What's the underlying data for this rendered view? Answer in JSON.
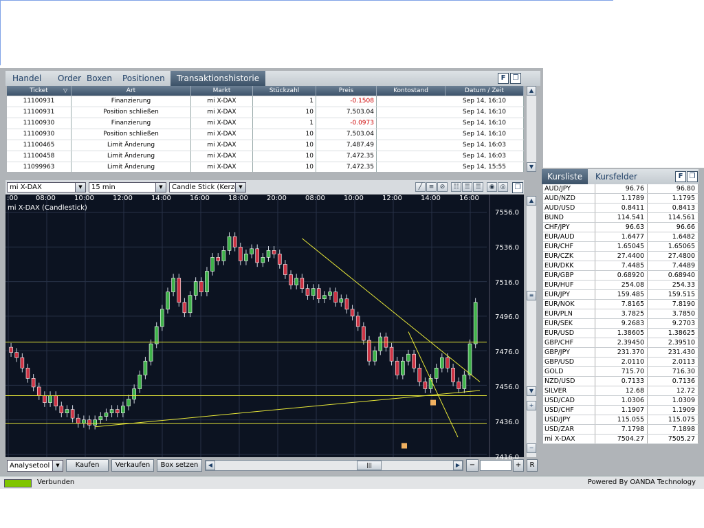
{
  "tabs": [
    "Handel",
    "Order",
    "Boxen",
    "Positionen",
    "Transaktionshistorie"
  ],
  "active_tab": "Transaktionshistorie",
  "table": {
    "headers": [
      "Ticket",
      "Art",
      "Markt",
      "Stückzahl",
      "Preis",
      "Kontostand",
      "Datum / Zeit"
    ],
    "rows": [
      [
        "11100931",
        "Finanzierung",
        "mi X-DAX",
        "1",
        "-0.1508",
        "",
        "Sep 14, 16:10"
      ],
      [
        "11100931",
        "Position schließen",
        "mi X-DAX",
        "10",
        "7,503.04",
        "",
        "Sep 14, 16:10"
      ],
      [
        "11100930",
        "Finanzierung",
        "mi X-DAX",
        "1",
        "-0.0973",
        "",
        "Sep 14, 16:10"
      ],
      [
        "11100930",
        "Position schließen",
        "mi X-DAX",
        "10",
        "7,503.04",
        "",
        "Sep 14, 16:10"
      ],
      [
        "11100465",
        "Limit Änderung",
        "mi X-DAX",
        "10",
        "7,487.49",
        "",
        "Sep 14, 16:03"
      ],
      [
        "11100458",
        "Limit Änderung",
        "mi X-DAX",
        "10",
        "7,472.35",
        "",
        "Sep 14, 16:03"
      ],
      [
        "11099963",
        "Limit Änderung",
        "mi X-DAX",
        "10",
        "7,472.35",
        "",
        "Sep 14, 15:55"
      ]
    ]
  },
  "chart_toolbar": {
    "instrument": "mi X-DAX",
    "interval": "15 min",
    "chart_type": "Candle Stick (Kerze"
  },
  "chart_data": {
    "type": "candlestick",
    "title": "mi X-DAX (Candlestick)",
    "x_ticks": [
      ":00",
      "08:00",
      "10:00",
      "12:00",
      "14:00",
      "16:00",
      "18:00",
      "20:00",
      "08:00",
      "10:00",
      "12:00",
      "14:00",
      "16:00"
    ],
    "y_ticks": [
      "7556.0",
      "7536.0",
      "7516.0",
      "7496.0",
      "7476.0",
      "7456.0",
      "7436.0",
      "7416.0"
    ],
    "ylim": [
      7416,
      7556
    ],
    "bull_color": "#3fb24a",
    "bear_color": "#cc3344",
    "line_color": "#e8e838",
    "marker_color": "#f0b060",
    "closes": [
      7475,
      7472,
      7466,
      7460,
      7455,
      7450,
      7446,
      7450,
      7444,
      7440,
      7442,
      7437,
      7434,
      7436,
      7433,
      7436,
      7438,
      7440,
      7442,
      7440,
      7444,
      7448,
      7454,
      7462,
      7470,
      7480,
      7490,
      7500,
      7510,
      7518,
      7504,
      7498,
      7508,
      7516,
      7510,
      7522,
      7530,
      7528,
      7534,
      7542,
      7536,
      7528,
      7532,
      7535,
      7527,
      7530,
      7534,
      7532,
      7526,
      7520,
      7514,
      7518,
      7512,
      7508,
      7512,
      7506,
      7508,
      7510,
      7504,
      7506,
      7500,
      7496,
      7490,
      7482,
      7470,
      7476,
      7484,
      7478,
      7470,
      7462,
      7470,
      7474,
      7466,
      7458,
      7454,
      7460,
      7466,
      7472,
      7466,
      7458,
      7454,
      7462,
      7480,
      7504
    ],
    "horizontal_levels": [
      7481,
      7450,
      7434
    ],
    "markers": [
      7446,
      7421
    ]
  },
  "bottom": {
    "analysetool": "Analysetool",
    "buy": "Kaufen",
    "sell": "Verkaufen",
    "box": "Box setzen",
    "r": "R"
  },
  "status": {
    "text": "Verbunden",
    "powered": "Powered By OANDA Technology",
    "indicator_color": "#7fc500"
  },
  "right_tabs": [
    "Kursliste",
    "Kursfelder"
  ],
  "quotes": [
    [
      "AUD/JPY",
      "96.76",
      "96.80"
    ],
    [
      "AUD/NZD",
      "1.1789",
      "1.1795"
    ],
    [
      "AUD/USD",
      "0.8411",
      "0.8413"
    ],
    [
      "BUND",
      "114.541",
      "114.561"
    ],
    [
      "CHF/JPY",
      "96.63",
      "96.66"
    ],
    [
      "EUR/AUD",
      "1.6477",
      "1.6482"
    ],
    [
      "EUR/CHF",
      "1.65045",
      "1.65065"
    ],
    [
      "EUR/CZK",
      "27.4400",
      "27.4800"
    ],
    [
      "EUR/DKK",
      "7.4485",
      "7.4489"
    ],
    [
      "EUR/GBP",
      "0.68920",
      "0.68940"
    ],
    [
      "EUR/HUF",
      "254.08",
      "254.33"
    ],
    [
      "EUR/JPY",
      "159.485",
      "159.515"
    ],
    [
      "EUR/NOK",
      "7.8165",
      "7.8190"
    ],
    [
      "EUR/PLN",
      "3.7825",
      "3.7850"
    ],
    [
      "EUR/SEK",
      "9.2683",
      "9.2703"
    ],
    [
      "EUR/USD",
      "1.38605",
      "1.38625"
    ],
    [
      "GBP/CHF",
      "2.39450",
      "2.39510"
    ],
    [
      "GBP/JPY",
      "231.370",
      "231.430"
    ],
    [
      "GBP/USD",
      "2.0110",
      "2.0113"
    ],
    [
      "GOLD",
      "715.70",
      "716.30"
    ],
    [
      "NZD/USD",
      "0.7133",
      "0.7136"
    ],
    [
      "SILVER",
      "12.68",
      "12.72"
    ],
    [
      "USD/CAD",
      "1.0306",
      "1.0309"
    ],
    [
      "USD/CHF",
      "1.1907",
      "1.1909"
    ],
    [
      "USD/JPY",
      "115.055",
      "115.075"
    ],
    [
      "USD/ZAR",
      "7.1798",
      "7.1898"
    ],
    [
      "mi X-DAX",
      "7504.27",
      "7505.27"
    ]
  ]
}
